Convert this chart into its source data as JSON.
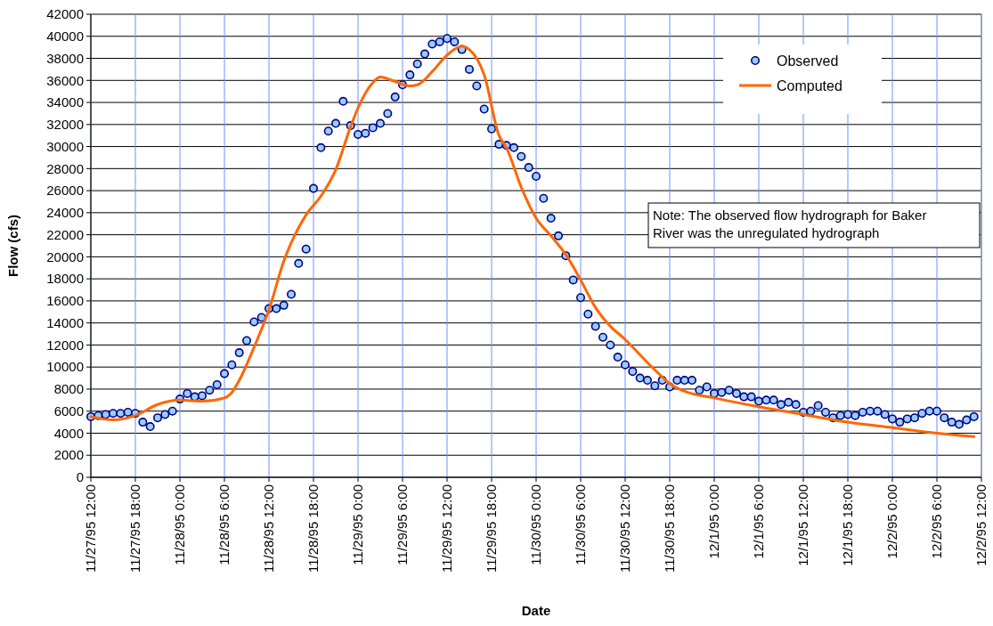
{
  "chart_data": {
    "type": "scatter",
    "xlabel": "Date",
    "ylabel": "Flow (cfs)",
    "legend": "top right",
    "grid": true,
    "annotations": [
      "Note: The observed flow hydrograph for Baker River was the unregulated hydrograph"
    ],
    "xlim": [
      "1995-11-27T12:00",
      "1995-12-02T12:00"
    ],
    "xticks": [
      {
        "value": "1995-11-27T12:00",
        "label": "11/27/95 12:00"
      },
      {
        "value": "1995-11-27T18:00",
        "label": "11/27/95 18:00"
      },
      {
        "value": "1995-11-28T00:00",
        "label": "11/28/95 0:00"
      },
      {
        "value": "1995-11-28T06:00",
        "label": "11/28/95 6:00"
      },
      {
        "value": "1995-11-28T12:00",
        "label": "11/28/95 12:00"
      },
      {
        "value": "1995-11-28T18:00",
        "label": "11/28/95 18:00"
      },
      {
        "value": "1995-11-29T00:00",
        "label": "11/29/95 0:00"
      },
      {
        "value": "1995-11-29T06:00",
        "label": "11/29/95 6:00"
      },
      {
        "value": "1995-11-29T12:00",
        "label": "11/29/95 12:00"
      },
      {
        "value": "1995-11-29T18:00",
        "label": "11/29/95 18:00"
      },
      {
        "value": "1995-11-30T00:00",
        "label": "11/30/95 0:00"
      },
      {
        "value": "1995-11-30T06:00",
        "label": "11/30/95 6:00"
      },
      {
        "value": "1995-11-30T12:00",
        "label": "11/30/95 12:00"
      },
      {
        "value": "1995-11-30T18:00",
        "label": "11/30/95 18:00"
      },
      {
        "value": "1995-12-01T00:00",
        "label": "12/1/95 0:00"
      },
      {
        "value": "1995-12-01T06:00",
        "label": "12/1/95 6:00"
      },
      {
        "value": "1995-12-01T12:00",
        "label": "12/1/95 12:00"
      },
      {
        "value": "1995-12-01T18:00",
        "label": "12/1/95 18:00"
      },
      {
        "value": "1995-12-02T00:00",
        "label": "12/2/95 0:00"
      },
      {
        "value": "1995-12-02T06:00",
        "label": "12/2/95 6:00"
      },
      {
        "value": "1995-12-02T12:00",
        "label": "12/2/95 12:00"
      }
    ],
    "ylim": [
      0,
      42000
    ],
    "yticks": [
      0,
      2000,
      4000,
      6000,
      8000,
      10000,
      12000,
      14000,
      16000,
      18000,
      20000,
      22000,
      24000,
      26000,
      28000,
      30000,
      32000,
      34000,
      36000,
      38000,
      40000,
      42000
    ],
    "series": [
      {
        "name": "Observed",
        "marker": "circle",
        "color": "#99ccff",
        "x": [
          "1995-11-27T12:00",
          "1995-11-27T13:00",
          "1995-11-27T14:00",
          "1995-11-27T15:00",
          "1995-11-27T16:00",
          "1995-11-27T17:00",
          "1995-11-27T18:00",
          "1995-11-27T19:00",
          "1995-11-27T20:00",
          "1995-11-27T21:00",
          "1995-11-27T22:00",
          "1995-11-27T23:00",
          "1995-11-28T00:00",
          "1995-11-28T01:00",
          "1995-11-28T02:00",
          "1995-11-28T03:00",
          "1995-11-28T04:00",
          "1995-11-28T05:00",
          "1995-11-28T06:00",
          "1995-11-28T07:00",
          "1995-11-28T08:00",
          "1995-11-28T09:00",
          "1995-11-28T10:00",
          "1995-11-28T11:00",
          "1995-11-28T12:00",
          "1995-11-28T13:00",
          "1995-11-28T14:00",
          "1995-11-28T15:00",
          "1995-11-28T16:00",
          "1995-11-28T17:00",
          "1995-11-28T18:00",
          "1995-11-28T19:00",
          "1995-11-28T20:00",
          "1995-11-28T21:00",
          "1995-11-28T22:00",
          "1995-11-28T23:00",
          "1995-11-29T00:00",
          "1995-11-29T01:00",
          "1995-11-29T02:00",
          "1995-11-29T03:00",
          "1995-11-29T04:00",
          "1995-11-29T05:00",
          "1995-11-29T06:00",
          "1995-11-29T07:00",
          "1995-11-29T08:00",
          "1995-11-29T09:00",
          "1995-11-29T10:00",
          "1995-11-29T11:00",
          "1995-11-29T12:00",
          "1995-11-29T13:00",
          "1995-11-29T14:00",
          "1995-11-29T15:00",
          "1995-11-29T16:00",
          "1995-11-29T17:00",
          "1995-11-29T18:00",
          "1995-11-29T19:00",
          "1995-11-29T20:00",
          "1995-11-29T21:00",
          "1995-11-29T22:00",
          "1995-11-29T23:00",
          "1995-11-30T00:00",
          "1995-11-30T01:00",
          "1995-11-30T02:00",
          "1995-11-30T03:00",
          "1995-11-30T04:00",
          "1995-11-30T05:00",
          "1995-11-30T06:00",
          "1995-11-30T07:00",
          "1995-11-30T08:00",
          "1995-11-30T09:00",
          "1995-11-30T10:00",
          "1995-11-30T11:00",
          "1995-11-30T12:00",
          "1995-11-30T13:00",
          "1995-11-30T14:00",
          "1995-11-30T15:00",
          "1995-11-30T16:00",
          "1995-11-30T17:00",
          "1995-11-30T18:00",
          "1995-11-30T19:00",
          "1995-11-30T20:00",
          "1995-11-30T21:00",
          "1995-11-30T22:00",
          "1995-11-30T23:00",
          "1995-12-01T00:00",
          "1995-12-01T01:00",
          "1995-12-01T02:00",
          "1995-12-01T03:00",
          "1995-12-01T04:00",
          "1995-12-01T05:00",
          "1995-12-01T06:00",
          "1995-12-01T07:00",
          "1995-12-01T08:00",
          "1995-12-01T09:00",
          "1995-12-01T10:00",
          "1995-12-01T11:00",
          "1995-12-01T12:00",
          "1995-12-01T13:00",
          "1995-12-01T14:00",
          "1995-12-01T15:00",
          "1995-12-01T16:00",
          "1995-12-01T17:00",
          "1995-12-01T18:00",
          "1995-12-01T19:00",
          "1995-12-01T20:00",
          "1995-12-01T21:00",
          "1995-12-01T22:00",
          "1995-12-01T23:00",
          "1995-12-02T00:00",
          "1995-12-02T01:00",
          "1995-12-02T02:00",
          "1995-12-02T03:00",
          "1995-12-02T04:00",
          "1995-12-02T05:00",
          "1995-12-02T06:00",
          "1995-12-02T07:00",
          "1995-12-02T08:00",
          "1995-12-02T09:00",
          "1995-12-02T10:00",
          "1995-12-02T11:00"
        ],
        "values": [
          5500,
          5600,
          5700,
          5800,
          5800,
          5900,
          5800,
          5000,
          4600,
          5400,
          5700,
          6000,
          7100,
          7600,
          7300,
          7400,
          7900,
          8400,
          9400,
          10200,
          11300,
          12400,
          14100,
          14500,
          15300,
          15300,
          15600,
          16600,
          19400,
          20700,
          26200,
          29900,
          31400,
          32100,
          34100,
          31900,
          31100,
          31200,
          31700,
          32100,
          33000,
          34500,
          35600,
          36500,
          37500,
          38400,
          39300,
          39500,
          39800,
          39500,
          38800,
          37000,
          35500,
          33400,
          31600,
          30200,
          30100,
          29900,
          29100,
          28100,
          27300,
          25300,
          23500,
          21900,
          20100,
          17900,
          16300,
          14800,
          13700,
          12700,
          12000,
          10900,
          10200,
          9600,
          9000,
          8800,
          8300,
          8800,
          8200,
          8800,
          8800,
          8800,
          7900,
          8200,
          7600,
          7700,
          7900,
          7600,
          7300,
          7300,
          6900,
          7000,
          7000,
          6600,
          6800,
          6600,
          5900,
          6000,
          6500,
          5900,
          5400,
          5600,
          5700,
          5600,
          5900,
          6000,
          6000,
          5700,
          5300,
          5000,
          5300,
          5400,
          5800,
          6000,
          6000,
          5400,
          5000,
          4800,
          5200,
          5500
        ]
      },
      {
        "name": "Computed",
        "type": "line",
        "marker": "none",
        "line_style": "solid",
        "color": "#ff6600",
        "x": [
          "1995-11-27T12:00",
          "1995-11-27T15:00",
          "1995-11-27T18:00",
          "1995-11-27T21:00",
          "1995-11-28T00:00",
          "1995-11-28T03:00",
          "1995-11-28T06:00",
          "1995-11-28T07:00",
          "1995-11-28T08:00",
          "1995-11-28T10:00",
          "1995-11-28T12:00",
          "1995-11-28T14:00",
          "1995-11-28T17:00",
          "1995-11-28T19:00",
          "1995-11-28T21:00",
          "1995-11-28T23:00",
          "1995-11-29T00:00",
          "1995-11-29T02:00",
          "1995-11-29T03:00",
          "1995-11-29T05:00",
          "1995-11-29T07:00",
          "1995-11-29T08:00",
          "1995-11-29T10:00",
          "1995-11-29T12:00",
          "1995-11-29T14:00",
          "1995-11-29T15:00",
          "1995-11-29T17:00",
          "1995-11-29T19:00",
          "1995-11-29T20:00",
          "1995-11-29T22:00",
          "1995-11-30T00:00",
          "1995-11-30T02:00",
          "1995-11-30T04:00",
          "1995-11-30T06:00",
          "1995-11-30T08:00",
          "1995-11-30T10:00",
          "1995-11-30T12:00",
          "1995-11-30T15:00",
          "1995-11-30T17:00",
          "1995-11-30T18:00",
          "1995-11-30T20:00",
          "1995-12-01T00:00",
          "1995-12-01T06:00",
          "1995-12-01T12:00",
          "1995-12-01T18:00",
          "1995-12-02T00:00",
          "1995-12-02T06:00",
          "1995-12-02T11:00"
        ],
        "values": [
          5500,
          5200,
          5600,
          6600,
          7000,
          6900,
          7200,
          7700,
          8800,
          11800,
          15200,
          19600,
          23800,
          25500,
          27900,
          31800,
          33500,
          35800,
          36300,
          35900,
          35500,
          35600,
          36800,
          38300,
          39100,
          38800,
          36500,
          31000,
          29900,
          26300,
          23500,
          21900,
          20200,
          17900,
          15400,
          13700,
          12500,
          10400,
          9100,
          8500,
          7800,
          7200,
          6400,
          5700,
          5000,
          4500,
          4000,
          3700
        ]
      }
    ]
  }
}
